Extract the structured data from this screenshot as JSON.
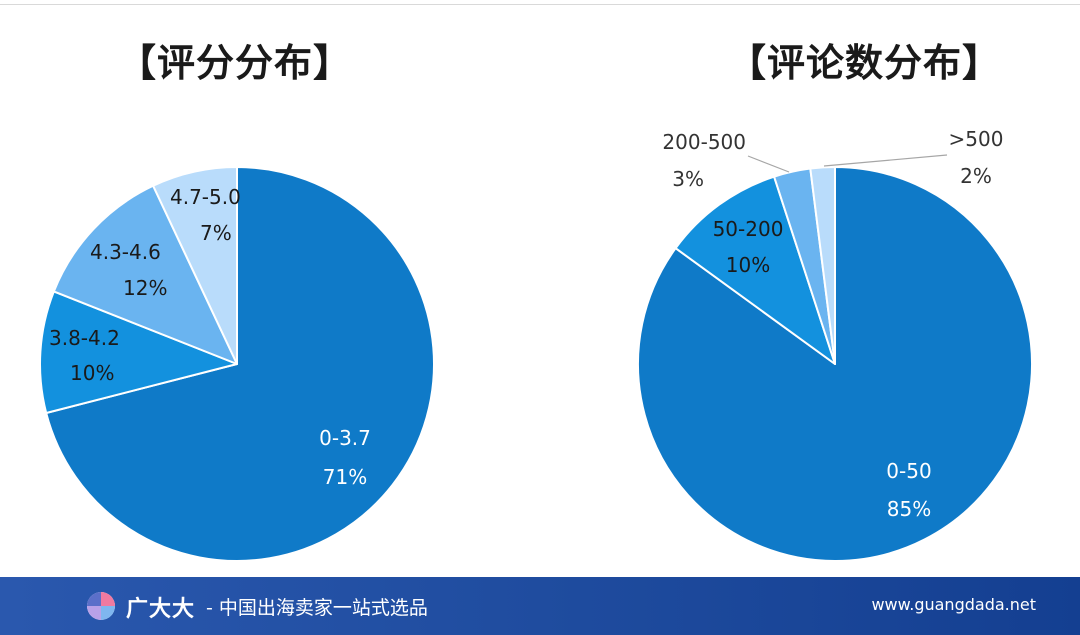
{
  "chart_data": [
    {
      "type": "pie",
      "title": "【评分分布】",
      "start_angle_deg": 0,
      "direction": "clockwise",
      "slices": [
        {
          "category": "0-3.7",
          "value": 71,
          "label": "71%",
          "color": "#0f7ac8",
          "text_color": "#ffffff"
        },
        {
          "category": "3.8-4.2",
          "value": 10,
          "label": "10%",
          "color": "#1391de",
          "text_color": "#1a1a1a"
        },
        {
          "category": "4.3-4.6",
          "value": 12,
          "label": "12%",
          "color": "#6ab4f0",
          "text_color": "#1a1a1a"
        },
        {
          "category": "4.7-5.0",
          "value": 7,
          "label": "7%",
          "color": "#b9dcfb",
          "text_color": "#1a1a1a"
        }
      ]
    },
    {
      "type": "pie",
      "title": "【评论数分布】",
      "start_angle_deg": 0,
      "direction": "clockwise",
      "slices": [
        {
          "category": "0-50",
          "value": 85,
          "label": "85%",
          "color": "#0f7ac8",
          "text_color": "#ffffff"
        },
        {
          "category": "50-200",
          "value": 10,
          "label": "10%",
          "color": "#1391de",
          "text_color": "#1a1a1a"
        },
        {
          "category": "200-500",
          "value": 3,
          "label": "3%",
          "color": "#6ab4f0",
          "text_color": "#333333"
        },
        {
          "category": ">500",
          "value": 2,
          "label": "2%",
          "color": "#b9dcfb",
          "text_color": "#333333"
        }
      ]
    }
  ],
  "footer": {
    "brand": "广大大",
    "slogan": "- 中国出海卖家一站式选品",
    "url": "www.guangdada.net"
  }
}
